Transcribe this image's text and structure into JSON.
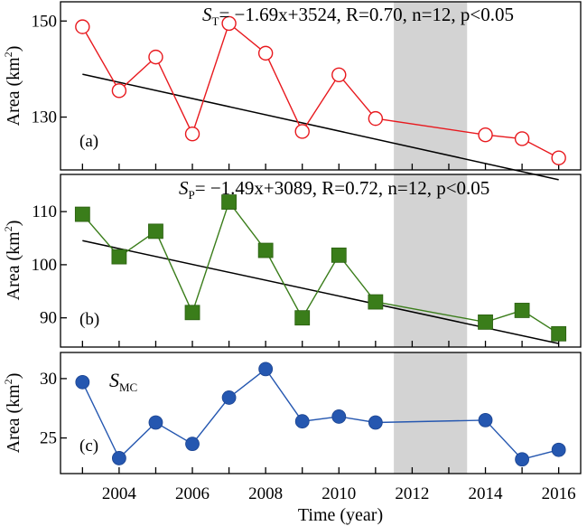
{
  "chart_data": [
    {
      "type": "line",
      "panel_label": "(a)",
      "annotation": "S_T= −1.69x+3524, R=0.70, n=12, p<0.05",
      "annotation_parts": {
        "symbol": "S",
        "subscript": "T",
        "body": "= −1.69x+3524, R=0.70, n=12, p<0.05"
      },
      "ylabel": "Area (km²)",
      "ylabel_parts": {
        "base": "Area (km",
        "sup": "2",
        "close": ")"
      },
      "yticks": [
        130,
        150
      ],
      "ylim": [
        119,
        154
      ],
      "xlim": [
        2002.4,
        2016.6
      ],
      "x": [
        2003,
        2004,
        2005,
        2006,
        2007,
        2008,
        2009,
        2010,
        2011,
        2014,
        2015,
        2016
      ],
      "series": [
        {
          "values": [
            148.8,
            135.5,
            142.5,
            126.5,
            149.5,
            143.3,
            127.0,
            138.8,
            129.7,
            126.3,
            125.5,
            121.5
          ],
          "marker": "open-circle",
          "color": "#e8191e"
        }
      ],
      "trendline": {
        "slope": -1.69,
        "intercept": 3524,
        "x_range": [
          2003,
          2016
        ],
        "color": "#000000"
      },
      "shaded_range": [
        2011.5,
        2013.5
      ]
    },
    {
      "type": "line",
      "panel_label": "(b)",
      "annotation": "S_P= −1.49x+3089, R=0.72, n=12, p<0.05",
      "annotation_parts": {
        "symbol": "S",
        "subscript": "P",
        "body": "= −1.49x+3089, R=0.72, n=12, p<0.05"
      },
      "ylabel": "Area (km²)",
      "ylabel_parts": {
        "base": "Area (km",
        "sup": "2",
        "close": ")"
      },
      "yticks": [
        90,
        100,
        110
      ],
      "ylim": [
        84.5,
        117
      ],
      "xlim": [
        2002.4,
        2016.6
      ],
      "x": [
        2003,
        2004,
        2005,
        2006,
        2007,
        2008,
        2009,
        2010,
        2011,
        2014,
        2015,
        2016
      ],
      "series": [
        {
          "values": [
            109.5,
            101.5,
            106.3,
            91.0,
            111.8,
            102.7,
            90.0,
            101.8,
            93.0,
            89.2,
            91.4,
            87.0
          ],
          "marker": "filled-square",
          "color": "#3a7d1a"
        }
      ],
      "trendline": {
        "slope": -1.49,
        "intercept": 3089,
        "x_range": [
          2003,
          2016
        ],
        "color": "#000000"
      },
      "shaded_range": [
        2011.5,
        2013.5
      ]
    },
    {
      "type": "line",
      "panel_label": "(c)",
      "series_label": "S_MC",
      "series_label_parts": {
        "symbol": "S",
        "subscript": "MC"
      },
      "ylabel": "Area (km²)",
      "ylabel_parts": {
        "base": "Area (km",
        "sup": "2",
        "close": ")"
      },
      "xlabel": "Time (year)",
      "xticks": [
        2004,
        2006,
        2008,
        2010,
        2012,
        2014,
        2016
      ],
      "yticks": [
        25,
        30
      ],
      "ylim": [
        22,
        32.2
      ],
      "xlim": [
        2002.4,
        2016.6
      ],
      "x": [
        2003,
        2004,
        2005,
        2006,
        2007,
        2008,
        2009,
        2010,
        2011,
        2014,
        2015,
        2016
      ],
      "series": [
        {
          "values": [
            29.7,
            23.3,
            26.3,
            24.5,
            28.4,
            30.8,
            26.4,
            26.8,
            26.3,
            26.5,
            23.2,
            24.0
          ],
          "marker": "filled-circle",
          "color": "#2557b0"
        }
      ],
      "shaded_range": [
        2011.5,
        2013.5
      ]
    }
  ]
}
